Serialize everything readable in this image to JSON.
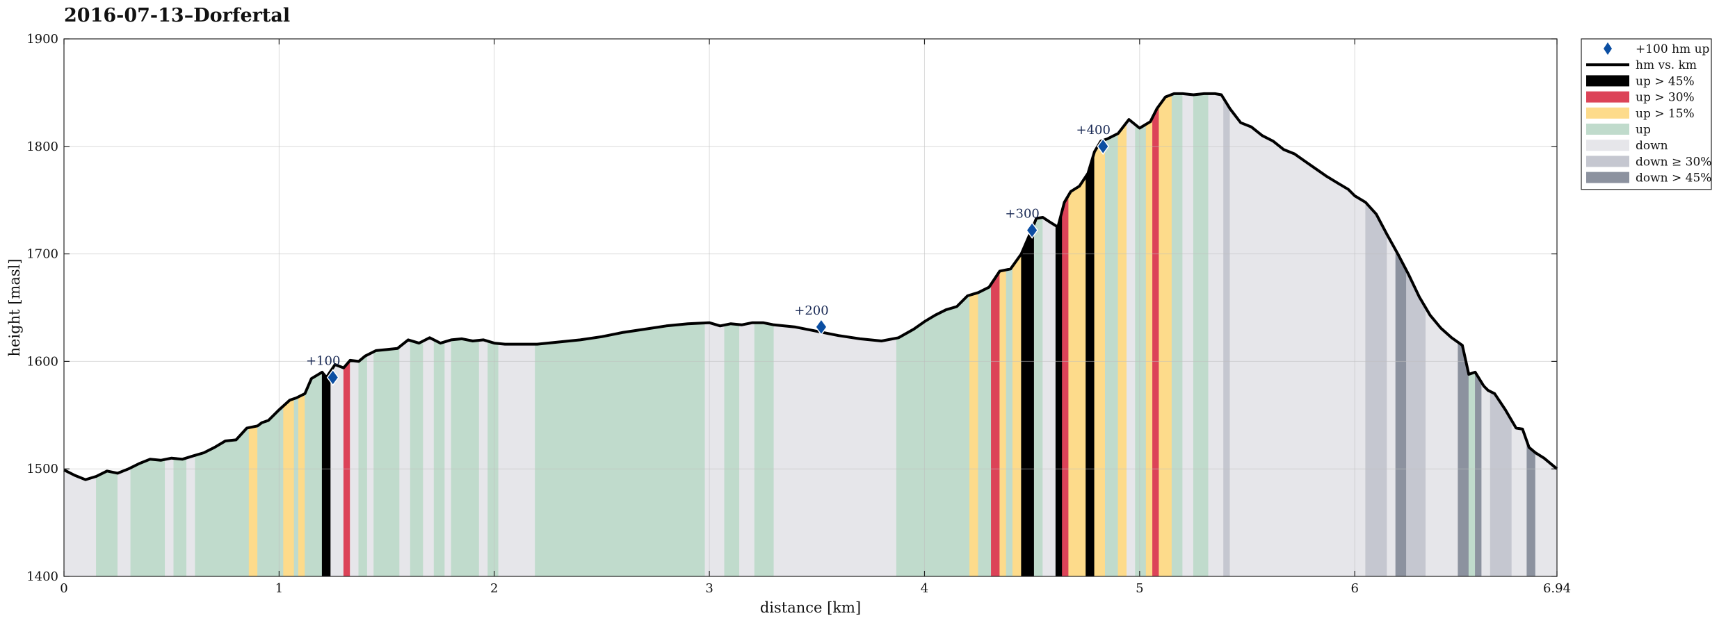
{
  "chart_data": {
    "type": "area",
    "title": "2016-07-13–Dorfertal",
    "xlabel": "distance [km]",
    "ylabel": "height [masl]",
    "xlim": [
      0,
      6.94
    ],
    "ylim": [
      1400,
      1900
    ],
    "xticks": [
      "0",
      "1",
      "2",
      "3",
      "4",
      "5",
      "6",
      "6.94"
    ],
    "xtick_values": [
      0,
      1,
      2,
      3,
      4,
      5,
      6,
      6.94
    ],
    "yticks": [
      "1400",
      "1500",
      "1600",
      "1700",
      "1800",
      "1900"
    ],
    "ytick_values": [
      1400,
      1500,
      1600,
      1700,
      1800,
      1900
    ],
    "grid": true,
    "legend_position": "outside-top-right",
    "colors": {
      "line": "#000000",
      "marker": "#0b4ea2",
      "up45": "#000000",
      "up30": "#dc4358",
      "up15": "#fddb8b",
      "up": "#c0dbcc",
      "down": "#e6e6ea",
      "down30": "#c5c7d0",
      "down45": "#8c929f"
    },
    "legend": [
      {
        "key": "marker",
        "label": "+100 hm up"
      },
      {
        "key": "line",
        "label": "hm vs. km"
      },
      {
        "key": "up45",
        "label": "up > 45%"
      },
      {
        "key": "up30",
        "label": "up > 30%"
      },
      {
        "key": "up15",
        "label": "up > 15%"
      },
      {
        "key": "up",
        "label": "up"
      },
      {
        "key": "down",
        "label": "down"
      },
      {
        "key": "down30",
        "label": "down ≥ 30%"
      },
      {
        "key": "down45",
        "label": "down > 45%"
      }
    ],
    "profile": {
      "x": [
        0,
        0.05,
        0.1,
        0.15,
        0.2,
        0.25,
        0.3,
        0.35,
        0.4,
        0.45,
        0.5,
        0.55,
        0.6,
        0.65,
        0.7,
        0.75,
        0.8,
        0.85,
        0.9,
        0.92,
        0.95,
        1.0,
        1.05,
        1.08,
        1.12,
        1.15,
        1.2,
        1.22,
        1.26,
        1.3,
        1.33,
        1.37,
        1.4,
        1.45,
        1.5,
        1.55,
        1.6,
        1.65,
        1.7,
        1.75,
        1.8,
        1.85,
        1.9,
        1.95,
        2.0,
        2.05,
        2.1,
        2.2,
        2.3,
        2.4,
        2.5,
        2.6,
        2.7,
        2.8,
        2.9,
        3.0,
        3.05,
        3.1,
        3.15,
        3.2,
        3.25,
        3.3,
        3.4,
        3.5,
        3.6,
        3.7,
        3.8,
        3.88,
        3.95,
        4.0,
        4.05,
        4.1,
        4.15,
        4.2,
        4.25,
        4.3,
        4.35,
        4.4,
        4.45,
        4.5,
        4.52,
        4.55,
        4.58,
        4.62,
        4.65,
        4.68,
        4.72,
        4.76,
        4.79,
        4.82,
        4.85,
        4.9,
        4.95,
        5.0,
        5.05,
        5.08,
        5.12,
        5.16,
        5.2,
        5.25,
        5.3,
        5.35,
        5.38,
        5.42,
        5.47,
        5.52,
        5.57,
        5.62,
        5.67,
        5.72,
        5.77,
        5.82,
        5.87,
        5.92,
        5.97,
        6.0,
        6.05,
        6.1,
        6.15,
        6.2,
        6.25,
        6.3,
        6.35,
        6.4,
        6.45,
        6.5,
        6.53,
        6.56,
        6.6,
        6.62,
        6.65,
        6.7,
        6.75,
        6.78,
        6.81,
        6.84,
        6.88,
        6.94
      ],
      "y": [
        1499,
        1494,
        1490,
        1493,
        1498,
        1496,
        1500,
        1505,
        1509,
        1508,
        1510,
        1509,
        1512,
        1515,
        1520,
        1526,
        1527,
        1538,
        1540,
        1543,
        1545,
        1555,
        1564,
        1566,
        1570,
        1584,
        1590,
        1585,
        1597,
        1594,
        1601,
        1600,
        1605,
        1610,
        1611,
        1612,
        1620,
        1617,
        1622,
        1617,
        1620,
        1621,
        1619,
        1620,
        1617,
        1616,
        1616,
        1616,
        1618,
        1620,
        1623,
        1627,
        1630,
        1633,
        1635,
        1636,
        1633,
        1635,
        1634,
        1636,
        1636,
        1634,
        1632,
        1628,
        1624,
        1621,
        1619,
        1622,
        1630,
        1637,
        1643,
        1648,
        1651,
        1661,
        1664,
        1669,
        1684,
        1686,
        1700,
        1723,
        1733,
        1734,
        1730,
        1725,
        1748,
        1758,
        1763,
        1775,
        1795,
        1805,
        1807,
        1812,
        1825,
        1817,
        1823,
        1835,
        1846,
        1849,
        1849,
        1848,
        1849,
        1849,
        1848,
        1835,
        1822,
        1818,
        1810,
        1805,
        1797,
        1793,
        1786,
        1779,
        1772,
        1766,
        1760,
        1754,
        1748,
        1737,
        1718,
        1700,
        1681,
        1660,
        1643,
        1631,
        1622,
        1615,
        1588,
        1590,
        1577,
        1573,
        1570,
        1555,
        1538,
        1537,
        1520,
        1515,
        1510,
        1500
      ]
    },
    "segments": [
      {
        "x0": 0.0,
        "x1": 0.15,
        "c": "down"
      },
      {
        "x0": 0.15,
        "x1": 0.25,
        "c": "up"
      },
      {
        "x0": 0.25,
        "x1": 0.31,
        "c": "down"
      },
      {
        "x0": 0.31,
        "x1": 0.47,
        "c": "up"
      },
      {
        "x0": 0.47,
        "x1": 0.51,
        "c": "down"
      },
      {
        "x0": 0.51,
        "x1": 0.57,
        "c": "up"
      },
      {
        "x0": 0.57,
        "x1": 0.61,
        "c": "down"
      },
      {
        "x0": 0.61,
        "x1": 0.86,
        "c": "up"
      },
      {
        "x0": 0.86,
        "x1": 0.9,
        "c": "up15"
      },
      {
        "x0": 0.9,
        "x1": 1.02,
        "c": "up"
      },
      {
        "x0": 1.02,
        "x1": 1.07,
        "c": "up15"
      },
      {
        "x0": 1.07,
        "x1": 1.09,
        "c": "up"
      },
      {
        "x0": 1.09,
        "x1": 1.12,
        "c": "up15"
      },
      {
        "x0": 1.12,
        "x1": 1.2,
        "c": "up"
      },
      {
        "x0": 1.2,
        "x1": 1.24,
        "c": "up45"
      },
      {
        "x0": 1.24,
        "x1": 1.3,
        "c": "down"
      },
      {
        "x0": 1.3,
        "x1": 1.33,
        "c": "up30"
      },
      {
        "x0": 1.33,
        "x1": 1.37,
        "c": "down"
      },
      {
        "x0": 1.37,
        "x1": 1.41,
        "c": "up"
      },
      {
        "x0": 1.41,
        "x1": 1.44,
        "c": "down"
      },
      {
        "x0": 1.44,
        "x1": 1.56,
        "c": "up"
      },
      {
        "x0": 1.56,
        "x1": 1.61,
        "c": "down"
      },
      {
        "x0": 1.61,
        "x1": 1.67,
        "c": "up"
      },
      {
        "x0": 1.67,
        "x1": 1.72,
        "c": "down"
      },
      {
        "x0": 1.72,
        "x1": 1.77,
        "c": "up"
      },
      {
        "x0": 1.77,
        "x1": 1.8,
        "c": "down"
      },
      {
        "x0": 1.8,
        "x1": 1.93,
        "c": "up"
      },
      {
        "x0": 1.93,
        "x1": 1.97,
        "c": "down"
      },
      {
        "x0": 1.97,
        "x1": 2.02,
        "c": "up"
      },
      {
        "x0": 2.02,
        "x1": 2.19,
        "c": "down"
      },
      {
        "x0": 2.19,
        "x1": 2.98,
        "c": "up"
      },
      {
        "x0": 2.98,
        "x1": 3.07,
        "c": "down"
      },
      {
        "x0": 3.07,
        "x1": 3.14,
        "c": "up"
      },
      {
        "x0": 3.14,
        "x1": 3.21,
        "c": "down"
      },
      {
        "x0": 3.21,
        "x1": 3.3,
        "c": "up"
      },
      {
        "x0": 3.3,
        "x1": 3.87,
        "c": "down"
      },
      {
        "x0": 3.87,
        "x1": 4.21,
        "c": "up"
      },
      {
        "x0": 4.21,
        "x1": 4.25,
        "c": "up15"
      },
      {
        "x0": 4.25,
        "x1": 4.31,
        "c": "up"
      },
      {
        "x0": 4.31,
        "x1": 4.35,
        "c": "up30"
      },
      {
        "x0": 4.35,
        "x1": 4.38,
        "c": "up15"
      },
      {
        "x0": 4.38,
        "x1": 4.41,
        "c": "up"
      },
      {
        "x0": 4.41,
        "x1": 4.45,
        "c": "up15"
      },
      {
        "x0": 4.45,
        "x1": 4.51,
        "c": "up45"
      },
      {
        "x0": 4.51,
        "x1": 4.55,
        "c": "up"
      },
      {
        "x0": 4.55,
        "x1": 4.61,
        "c": "down"
      },
      {
        "x0": 4.61,
        "x1": 4.64,
        "c": "up45"
      },
      {
        "x0": 4.64,
        "x1": 4.67,
        "c": "up30"
      },
      {
        "x0": 4.67,
        "x1": 4.75,
        "c": "up15"
      },
      {
        "x0": 4.75,
        "x1": 4.79,
        "c": "up45"
      },
      {
        "x0": 4.79,
        "x1": 4.84,
        "c": "up15"
      },
      {
        "x0": 4.84,
        "x1": 4.9,
        "c": "up"
      },
      {
        "x0": 4.9,
        "x1": 4.94,
        "c": "up15"
      },
      {
        "x0": 4.94,
        "x1": 4.98,
        "c": "down"
      },
      {
        "x0": 4.98,
        "x1": 5.03,
        "c": "up"
      },
      {
        "x0": 5.03,
        "x1": 5.06,
        "c": "up15"
      },
      {
        "x0": 5.06,
        "x1": 5.09,
        "c": "up30"
      },
      {
        "x0": 5.09,
        "x1": 5.15,
        "c": "up15"
      },
      {
        "x0": 5.15,
        "x1": 5.2,
        "c": "up"
      },
      {
        "x0": 5.2,
        "x1": 5.25,
        "c": "down"
      },
      {
        "x0": 5.25,
        "x1": 5.32,
        "c": "up"
      },
      {
        "x0": 5.32,
        "x1": 5.39,
        "c": "down"
      },
      {
        "x0": 5.39,
        "x1": 5.42,
        "c": "down30"
      },
      {
        "x0": 5.42,
        "x1": 6.05,
        "c": "down"
      },
      {
        "x0": 6.05,
        "x1": 6.15,
        "c": "down30"
      },
      {
        "x0": 6.15,
        "x1": 6.19,
        "c": "down"
      },
      {
        "x0": 6.19,
        "x1": 6.24,
        "c": "down45"
      },
      {
        "x0": 6.24,
        "x1": 6.33,
        "c": "down30"
      },
      {
        "x0": 6.33,
        "x1": 6.48,
        "c": "down"
      },
      {
        "x0": 6.48,
        "x1": 6.53,
        "c": "down45"
      },
      {
        "x0": 6.53,
        "x1": 6.56,
        "c": "up"
      },
      {
        "x0": 6.56,
        "x1": 6.59,
        "c": "down45"
      },
      {
        "x0": 6.59,
        "x1": 6.63,
        "c": "down"
      },
      {
        "x0": 6.63,
        "x1": 6.73,
        "c": "down30"
      },
      {
        "x0": 6.73,
        "x1": 6.8,
        "c": "down"
      },
      {
        "x0": 6.8,
        "x1": 6.84,
        "c": "down45"
      },
      {
        "x0": 6.84,
        "x1": 6.94,
        "c": "down"
      }
    ],
    "markers": [
      {
        "x": 1.25,
        "y": 1585,
        "label": "+100"
      },
      {
        "x": 3.52,
        "y": 1632,
        "label": "+200"
      },
      {
        "x": 4.5,
        "y": 1722,
        "label": "+300"
      },
      {
        "x": 4.83,
        "y": 1800,
        "label": "+400"
      }
    ]
  }
}
